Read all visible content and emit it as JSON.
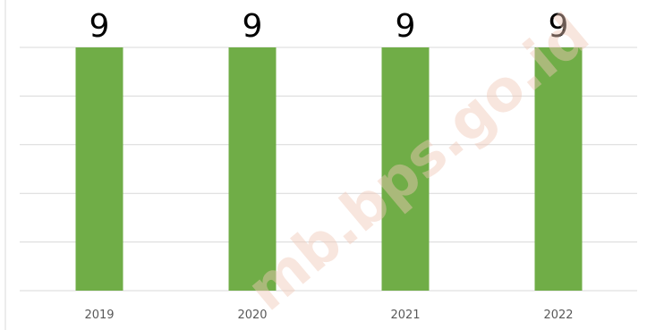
{
  "chart_data": {
    "type": "bar",
    "categories": [
      "2019",
      "2020",
      "2021",
      "2022"
    ],
    "values": [
      9,
      9,
      9,
      9
    ],
    "ylim": [
      0,
      9
    ],
    "grid": true,
    "legend": "none",
    "bar_color": "#70ad47",
    "title": "",
    "xlabel": "",
    "ylabel": ""
  },
  "watermark": "mb.bps.go.id"
}
